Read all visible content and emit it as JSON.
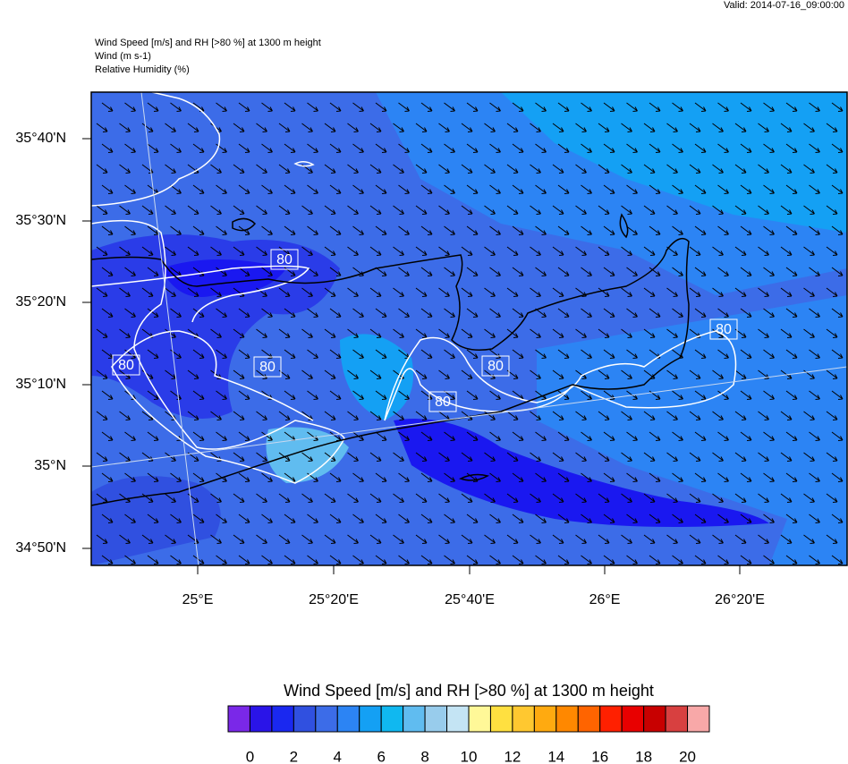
{
  "header": {
    "valid": "Valid: 2014-07-16_09:00:00",
    "lines": [
      "Wind Speed [m/s] and RH [>80 %] at 1300 m height",
      "Wind   (m s-1)",
      "Relative Humidity   (%)"
    ]
  },
  "map": {
    "lat_labels": [
      "35°40'N",
      "35°30'N",
      "35°20'N",
      "35°10'N",
      "35°N",
      "34°50'N"
    ],
    "lon_labels": [
      "25°E",
      "25°20'E",
      "25°40'E",
      "26°E",
      "26°20'E"
    ],
    "contour_labels": [
      "80",
      "80",
      "80",
      "80",
      "80",
      "80"
    ]
  },
  "colorbar": {
    "title": "Wind Speed [m/s] and RH [>80 %] at 1300 m height",
    "colors": [
      "#7a28e8",
      "#2a14e8",
      "#1a28f0",
      "#3050e0",
      "#3c6ce8",
      "#2c84f4",
      "#14a0f4",
      "#10b8f0",
      "#60bcf0",
      "#98ccec",
      "#c4e4f4",
      "#fff898",
      "#ffe040",
      "#ffc830",
      "#ffaa10",
      "#ff8800",
      "#ff6400",
      "#ff2000",
      "#e80000",
      "#c80000",
      "#d84040",
      "#f8a8a8"
    ],
    "ticks": [
      0,
      2,
      4,
      6,
      8,
      10,
      12,
      14,
      16,
      18,
      20
    ]
  }
}
